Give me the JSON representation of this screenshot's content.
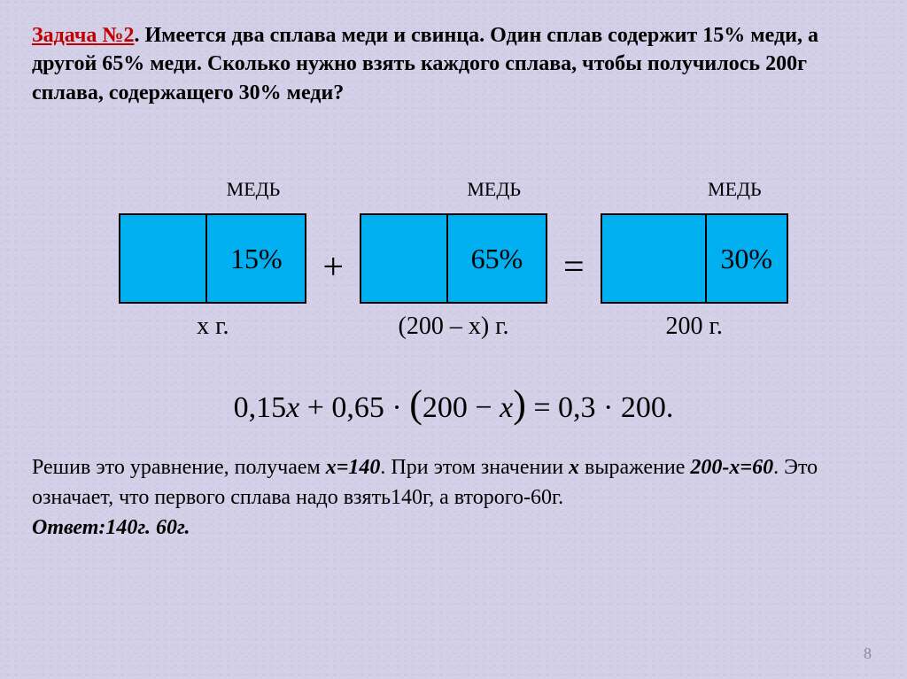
{
  "problem": {
    "label": "Задача №2",
    "text": ".  Имеется два сплава меди и свинца. Один сплав содержит 15% меди, а другой 65% меди. Сколько нужно взять каждого сплава, чтобы получилось 200г сплава, содержащего 30% меди?"
  },
  "diagram": {
    "boxes": [
      {
        "top_label": "МЕДЬ",
        "percent": "15%",
        "bottom_label": "х г.",
        "left_width": 98,
        "right_width": 110,
        "box_color": "#00b0f0"
      },
      {
        "top_label": "МЕДЬ",
        "percent": "65%",
        "bottom_label": "(200 – х) г.",
        "left_width": 98,
        "right_width": 110,
        "box_color": "#00b0f0"
      },
      {
        "top_label": "МЕДЬ",
        "percent": "30%",
        "bottom_label": "200 г.",
        "left_width": 118,
        "right_width": 90,
        "box_color": "#00b0f0"
      }
    ],
    "operators": [
      "+",
      "="
    ]
  },
  "equation": "0,15x + 0,65 · (200 − x) = 0,3 · 200.",
  "solution": {
    "line1_a": "Решив это уравнение, получаем ",
    "x_eq": "х=140",
    "line1_b": ". При этом значении ",
    "x_var": "х",
    "line2_a": " выражение ",
    "expr": "200-х=60",
    "line2_b": ". Это означает, что первого сплава надо взять140г, а второго-60г."
  },
  "answer": "Ответ:140г. 60г.",
  "page_number": "8"
}
